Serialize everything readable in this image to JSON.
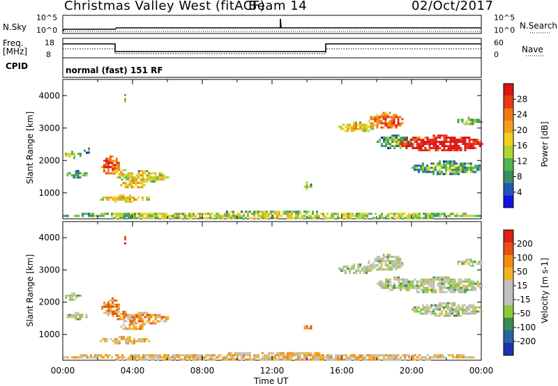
{
  "header": {
    "station": "Christmas Valley West (fitACF)",
    "beam": "Beam 14",
    "date": "02/Oct/2017"
  },
  "top_panels": {
    "nsky_label": "N.Sky",
    "nsearch_label": "N.Search",
    "nsky_ticks": [
      "10^5",
      "10^0"
    ],
    "nsearch_ticks": [
      "10^5",
      "10^0"
    ],
    "freq_label": "Freq.",
    "freq_unit": "[MHz]",
    "freq_ticks": [
      "18",
      "8"
    ],
    "nave_label": "Nave",
    "nave_ticks": [
      "60",
      "0"
    ],
    "cpid_label": "CPID",
    "cpid_text": "normal (fast) 151 RF"
  },
  "colors": {
    "power_scale": [
      "#1414e6",
      "#1e5ab4",
      "#3c8c64",
      "#50b450",
      "#b4d232",
      "#f0d21e",
      "#f0a01e",
      "#f07814",
      "#e63c14",
      "#dc1414"
    ],
    "velocity_scale": [
      "#1e32b4",
      "#2864a0",
      "#3c8c50",
      "#8cc83c",
      "#c0c0bc",
      "#c0c0bc",
      "#f0b41e",
      "#f08c14",
      "#e65014",
      "#dc1e14"
    ]
  },
  "chart_data": [
    {
      "type": "heatmap",
      "name": "Power",
      "colorbar_label": "Power [dB]",
      "colorbar_ticks": [
        "28",
        "24",
        "20",
        "16",
        "12",
        "8",
        "4"
      ],
      "ylabel": "Slant Range [km]",
      "y_ticks": [
        "4000",
        "3000",
        "2000",
        "1000"
      ],
      "ylim": [
        200,
        4500
      ],
      "xlim": [
        "00:00",
        "24:00"
      ],
      "blobs": [
        {
          "t": [
            0.0,
            1.0
          ],
          "r": [
            2100,
            2300
          ],
          "level": 0.35
        },
        {
          "t": [
            0.1,
            1.4
          ],
          "r": [
            1500,
            1700
          ],
          "level": 0.25
        },
        {
          "t": [
            1.2,
            1.6
          ],
          "r": [
            2250,
            2400
          ],
          "level": 0.2
        },
        {
          "t": [
            2.2,
            3.2
          ],
          "r": [
            1600,
            2150
          ],
          "level": 0.75
        },
        {
          "t": [
            2.7,
            3.6
          ],
          "r": [
            1550,
            1800
          ],
          "level": 0.5
        },
        {
          "t": [
            3.1,
            6.0
          ],
          "r": [
            1350,
            1700
          ],
          "level": 0.45
        },
        {
          "t": [
            3.3,
            4.7
          ],
          "r": [
            1150,
            1400
          ],
          "level": 0.55
        },
        {
          "t": [
            2.0,
            5.0
          ],
          "r": [
            750,
            950
          ],
          "level": 0.45
        },
        {
          "t": [
            3.4,
            3.6
          ],
          "r": [
            3850,
            4050
          ],
          "level": 0.25
        },
        {
          "t": [
            13.7,
            14.2
          ],
          "r": [
            1150,
            1350
          ],
          "level": 0.3
        },
        {
          "t": [
            15.8,
            17.8
          ],
          "r": [
            2900,
            3200
          ],
          "level": 0.45
        },
        {
          "t": [
            17.5,
            19.5
          ],
          "r": [
            3000,
            3500
          ],
          "level": 0.7
        },
        {
          "t": [
            18.0,
            20.0
          ],
          "r": [
            2400,
            2800
          ],
          "level": 0.25
        },
        {
          "t": [
            19.3,
            24.0
          ],
          "r": [
            2300,
            2800
          ],
          "level": 0.9
        },
        {
          "t": [
            20.0,
            24.0
          ],
          "r": [
            1600,
            2000
          ],
          "level": 0.25
        },
        {
          "t": [
            22.5,
            24.0
          ],
          "r": [
            3150,
            3350
          ],
          "level": 0.3
        },
        {
          "t": [
            0.0,
            24.0
          ],
          "r": [
            220,
            450
          ],
          "level": 0.35
        }
      ]
    },
    {
      "type": "heatmap",
      "name": "Velocity",
      "colorbar_label": "Velocity [m s-1]",
      "colorbar_ticks": [
        "200",
        "100",
        "50",
        "15",
        "-15",
        "-50",
        "-100",
        "-200"
      ],
      "ylabel": "Slant Range [km]",
      "y_ticks": [
        "4000",
        "3000",
        "2000",
        "1000"
      ],
      "ylim": [
        200,
        4500
      ],
      "xlim": [
        "00:00",
        "24:00"
      ],
      "x_ticks": [
        "00:00",
        "04:00",
        "08:00",
        "12:00",
        "16:00",
        "20:00",
        "00:00"
      ],
      "xlabel": "Time UT",
      "blobs": [
        {
          "t": [
            0.0,
            1.0
          ],
          "r": [
            2100,
            2300
          ],
          "level": 0.45
        },
        {
          "t": [
            0.1,
            1.4
          ],
          "r": [
            1500,
            1700
          ],
          "level": 0.45
        },
        {
          "t": [
            2.2,
            3.2
          ],
          "r": [
            1600,
            2150
          ],
          "level": 0.72
        },
        {
          "t": [
            2.7,
            3.6
          ],
          "r": [
            1550,
            1800
          ],
          "level": 0.72
        },
        {
          "t": [
            3.1,
            6.0
          ],
          "r": [
            1350,
            1700
          ],
          "level": 0.7
        },
        {
          "t": [
            3.3,
            4.7
          ],
          "r": [
            1150,
            1400
          ],
          "level": 0.65
        },
        {
          "t": [
            2.0,
            5.0
          ],
          "r": [
            750,
            950
          ],
          "level": 0.6
        },
        {
          "t": [
            3.4,
            3.6
          ],
          "r": [
            3850,
            4050
          ],
          "level": 0.95
        },
        {
          "t": [
            13.7,
            14.2
          ],
          "r": [
            1150,
            1350
          ],
          "level": 0.7
        },
        {
          "t": [
            15.8,
            17.8
          ],
          "r": [
            2900,
            3200
          ],
          "level": 0.45
        },
        {
          "t": [
            17.5,
            19.5
          ],
          "r": [
            3000,
            3500
          ],
          "level": 0.45
        },
        {
          "t": [
            18.0,
            20.0
          ],
          "r": [
            2400,
            2800
          ],
          "level": 0.45
        },
        {
          "t": [
            19.3,
            24.0
          ],
          "r": [
            2300,
            2800
          ],
          "level": 0.45
        },
        {
          "t": [
            20.0,
            24.0
          ],
          "r": [
            1600,
            2000
          ],
          "level": 0.45
        },
        {
          "t": [
            22.5,
            24.0
          ],
          "r": [
            3150,
            3350
          ],
          "level": 0.45
        },
        {
          "t": [
            0.0,
            24.0
          ],
          "r": [
            220,
            450
          ],
          "level": 0.62
        }
      ]
    }
  ]
}
